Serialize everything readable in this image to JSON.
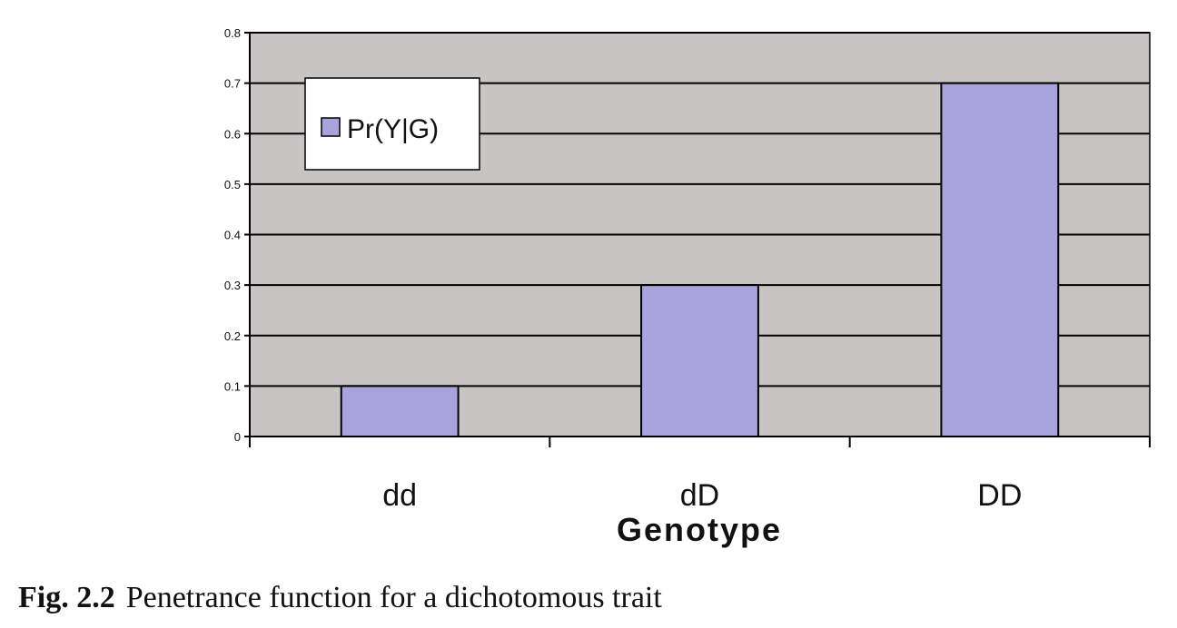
{
  "chart_data": {
    "type": "bar",
    "categories": [
      "dd",
      "dD",
      "DD"
    ],
    "series": [
      {
        "name": "Pr(Y|G)",
        "values": [
          0.1,
          0.3,
          0.7
        ]
      }
    ],
    "xlabel": "Genotype",
    "ylabel": "",
    "ylim": [
      0,
      0.8
    ],
    "yticks": [
      "0",
      "0.1",
      "0.2",
      "0.3",
      "0.4",
      "0.5",
      "0.6",
      "0.7",
      "0.8"
    ],
    "grid": true,
    "legend_position": "top-left",
    "colors": {
      "bar_fill": "#a8a3dc",
      "plot_background": "#c9c4c4",
      "gridline": "#000000"
    }
  },
  "caption": {
    "label": "Fig. 2.2",
    "text": "Penetrance function for a dichotomous trait"
  }
}
